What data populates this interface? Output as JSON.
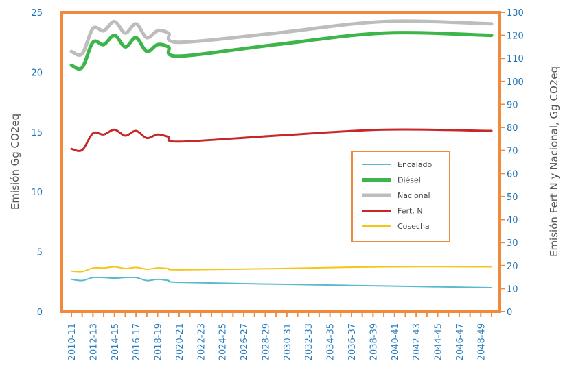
{
  "chart_data": {
    "type": "line",
    "title": "",
    "ylabel_left": "Emisión Gg CO2eq",
    "ylabel_right": "Emisión Fert N y Nacional, Gg CO2eq",
    "ylim_left": [
      0,
      25
    ],
    "ylim_right": [
      0,
      130
    ],
    "yticks_left": [
      "0",
      "5",
      "10",
      "15",
      "20",
      "25"
    ],
    "yticks_right": [
      "0",
      "10",
      "20",
      "30",
      "40",
      "50",
      "60",
      "70",
      "80",
      "90",
      "100",
      "110",
      "120",
      "130"
    ],
    "x_labels": [
      "2010-11",
      "2012-13",
      "2014-15",
      "2016-17",
      "2018-19",
      "2020-21",
      "2022-23",
      "2024-25",
      "2026-27",
      "2028-29",
      "2030-31",
      "2032-33",
      "2034-35",
      "2036-37",
      "2038-39",
      "2040-41",
      "2042-43",
      "2044-45",
      "2046-47",
      "2048-49"
    ],
    "x": [
      "2010-11",
      "2011-12",
      "2012-13",
      "2013-14",
      "2014-15",
      "2015-16",
      "2016-17",
      "2017-18",
      "2018-19",
      "2019-20",
      "2020-21",
      "2029-30",
      "2039-40",
      "2049-50"
    ],
    "grid": false,
    "legend_position": "center-right",
    "colors": {
      "frame": "#F08A3C",
      "left_tick": "#1E73B8",
      "right_tick": "#1E73B8",
      "x_tick": "#2A7FC0"
    },
    "series": [
      {
        "name": "Encalado",
        "axis": "left",
        "color": "#5BB9CF",
        "width": 2,
        "values": [
          2.7,
          2.6,
          2.85,
          2.85,
          2.8,
          2.85,
          2.85,
          2.6,
          2.7,
          2.6,
          2.45,
          2.3,
          2.15,
          2.0
        ]
      },
      {
        "name": "Diésel",
        "axis": "right",
        "color": "#3DB54A",
        "width": 5,
        "values": [
          107,
          106,
          117,
          116,
          120,
          115,
          119,
          113,
          116,
          115,
          111,
          116,
          121,
          120
        ]
      },
      {
        "name": "Nacional",
        "axis": "right",
        "color": "#BDBDBD",
        "width": 5,
        "values": [
          113,
          112,
          123,
          122,
          126,
          121,
          125,
          119,
          122,
          121,
          117,
          121,
          126,
          125
        ]
      },
      {
        "name": "Fert. N",
        "axis": "left",
        "color": "#C62828",
        "width": 3,
        "values": [
          13.6,
          13.5,
          14.9,
          14.8,
          15.2,
          14.7,
          15.1,
          14.5,
          14.8,
          14.6,
          14.2,
          14.7,
          15.2,
          15.1
        ]
      },
      {
        "name": "Cosecha",
        "axis": "left",
        "color": "#F5C518",
        "width": 2,
        "values": [
          3.4,
          3.35,
          3.65,
          3.65,
          3.75,
          3.6,
          3.7,
          3.55,
          3.65,
          3.6,
          3.5,
          3.6,
          3.75,
          3.75
        ]
      }
    ]
  }
}
